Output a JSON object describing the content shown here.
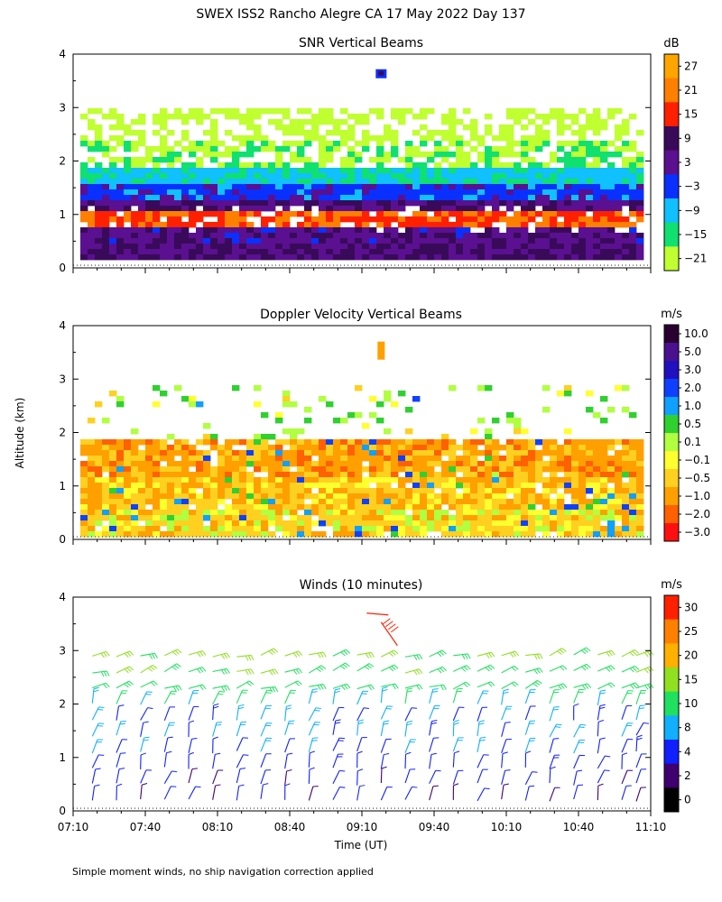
{
  "title": "SWEX ISS2 Rancho Alegre CA  17 May 2022 Day 137",
  "ylabel": "Altitude (km)",
  "xlabel": "Time (UT)",
  "footnote": "Simple moment winds, no ship navigation correction applied",
  "time_range_min": [
    430,
    670
  ],
  "altitude_range_km": [
    0,
    4
  ],
  "x_ticks": [
    "07:10",
    "07:40",
    "08:10",
    "08:40",
    "09:10",
    "09:40",
    "10:10",
    "10:40",
    "11:10"
  ],
  "y_ticks": [
    "0",
    "1",
    "2",
    "3",
    "4"
  ],
  "panels": [
    {
      "id": "snr",
      "title": "SNR Vertical Beams",
      "unit": "dB",
      "colorbar_labels": [
        "27",
        "21",
        "15",
        "9",
        "3",
        "−3",
        "−9",
        "−15",
        "−21"
      ],
      "colorbar_colors": [
        "#ffa500",
        "#ff7f00",
        "#ff2000",
        "#3a0a5a",
        "#5a1090",
        "#0a30ff",
        "#10c0ff",
        "#10e070",
        "#c0ff30"
      ]
    },
    {
      "id": "doppler",
      "title": "Doppler Velocity Vertical Beams",
      "unit": "m/s",
      "colorbar_labels": [
        "10.0",
        "5.0",
        "3.0",
        "2.0",
        "1.0",
        "0.5",
        "0.1",
        "−0.1",
        "−0.5",
        "−1.0",
        "−2.0",
        "−3.0"
      ],
      "colorbar_colors": [
        "#2a0030",
        "#4a1090",
        "#2010c0",
        "#1040ff",
        "#10a0ff",
        "#30d030",
        "#b0ff40",
        "#ffff30",
        "#ffd020",
        "#ffa000",
        "#ff6000",
        "#ff1010"
      ]
    },
    {
      "id": "winds",
      "title": "Winds (10 minutes)",
      "unit": "m/s",
      "colorbar_labels": [
        "30",
        "25",
        "20",
        "15",
        "10",
        "8",
        "4",
        "2",
        "0"
      ],
      "colorbar_colors": [
        "#ff2000",
        "#ff8000",
        "#ffb000",
        "#90e020",
        "#20e060",
        "#10b0ff",
        "#1020ff",
        "#400070",
        "#000000"
      ]
    }
  ],
  "chart_data": [
    {
      "type": "heatmap",
      "title": "SNR Vertical Beams",
      "unit": "dB",
      "x_label": "Time (UT)",
      "y_label": "Altitude (km)",
      "x_range_min_after_midnight": [
        430,
        670
      ],
      "y_range_km": [
        0,
        4
      ],
      "color_scale_db": [
        27,
        21,
        15,
        9,
        3,
        -3,
        -9,
        -15,
        -21
      ],
      "layers": [
        {
          "alt_km": [
            0.15,
            0.45
          ],
          "snr_db": 9
        },
        {
          "alt_km": [
            0.45,
            0.75
          ],
          "snr_db": 7
        },
        {
          "alt_km": [
            0.75,
            1.05
          ],
          "snr_db": 20
        },
        {
          "alt_km": [
            1.05,
            1.3
          ],
          "snr_db": 8
        },
        {
          "alt_km": [
            1.3,
            1.6
          ],
          "snr_db": 0
        },
        {
          "alt_km": [
            1.6,
            1.9
          ],
          "snr_db": -8
        },
        {
          "alt_km": [
            1.9,
            2.4
          ],
          "snr_db": -16
        },
        {
          "alt_km": [
            2.4,
            3.0
          ],
          "snr_db": -20
        }
      ]
    },
    {
      "type": "heatmap",
      "title": "Doppler Velocity Vertical Beams",
      "unit": "m/s",
      "x_label": "Time (UT)",
      "y_label": "Altitude (km)",
      "x_range_min_after_midnight": [
        430,
        670
      ],
      "y_range_km": [
        0,
        4
      ],
      "color_scale_ms": [
        10.0,
        5.0,
        3.0,
        2.0,
        1.0,
        0.5,
        0.1,
        -0.1,
        -0.5,
        -1.0,
        -2.0,
        -3.0
      ],
      "layers": [
        {
          "alt_km": [
            0.1,
            0.6
          ],
          "velocity_ms": -0.2
        },
        {
          "alt_km": [
            0.6,
            1.2
          ],
          "velocity_ms": -0.4
        },
        {
          "alt_km": [
            1.2,
            1.85
          ],
          "velocity_ms": -0.7
        },
        {
          "alt_km": [
            1.85,
            2.9
          ],
          "velocity_ms": 0.3
        }
      ]
    },
    {
      "type": "scatter",
      "title": "Winds (10 minutes)",
      "unit": "m/s",
      "x_label": "Time (UT)",
      "y_label": "Altitude (km)",
      "x_range_min_after_midnight": [
        430,
        670
      ],
      "y_range_km": [
        0,
        4
      ],
      "color_scale_ms": [
        30,
        25,
        20,
        15,
        10,
        8,
        4,
        2,
        0
      ],
      "profile_times_min": [
        438,
        448,
        458,
        468,
        478,
        488,
        498,
        508,
        518,
        528,
        538,
        548,
        558,
        568,
        578,
        588,
        598,
        608,
        618,
        628,
        638,
        648,
        658,
        664
      ],
      "profile": [
        {
          "alt_km": 0.2,
          "speed_ms": 5
        },
        {
          "alt_km": 0.5,
          "speed_ms": 5
        },
        {
          "alt_km": 0.8,
          "speed_ms": 6
        },
        {
          "alt_km": 1.1,
          "speed_ms": 7
        },
        {
          "alt_km": 1.4,
          "speed_ms": 8
        },
        {
          "alt_km": 1.7,
          "speed_ms": 8
        },
        {
          "alt_km": 2.0,
          "speed_ms": 10
        },
        {
          "alt_km": 2.3,
          "speed_ms": 12
        },
        {
          "alt_km": 2.6,
          "speed_ms": 14
        },
        {
          "alt_km": 2.9,
          "speed_ms": 16
        },
        {
          "alt_km": 3.7,
          "speed_ms": 30
        }
      ]
    }
  ]
}
